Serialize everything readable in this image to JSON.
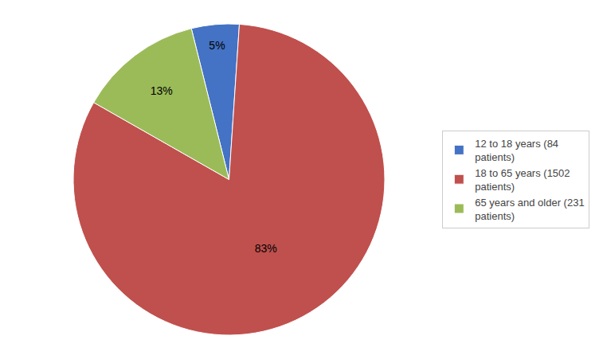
{
  "chart_data": {
    "type": "pie",
    "categories": [
      "12 to 18 years (84\npatients)",
      "18 to 65 years (1502\npatients)",
      "65 years and older (231\npatients)"
    ],
    "values": [
      5,
      83,
      13
    ],
    "value_labels": [
      "5%",
      "83%",
      "13%"
    ],
    "colors": [
      "#4472C4",
      "#C0504D",
      "#9BBB59"
    ],
    "data_labels": true,
    "legend": "right"
  }
}
